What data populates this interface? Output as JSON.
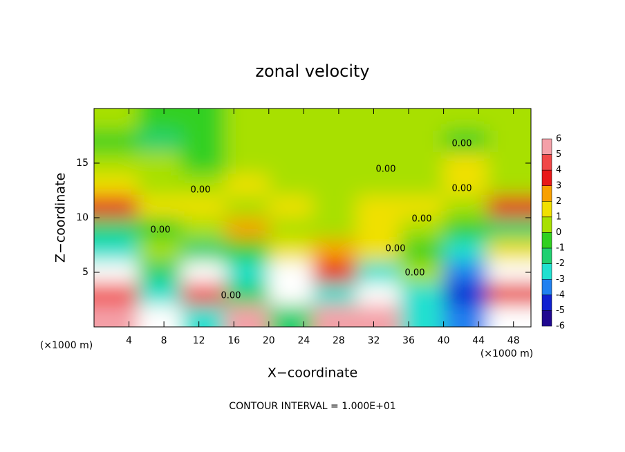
{
  "chart_data": {
    "type": "heatmap",
    "title": "zonal velocity",
    "x_label": "X−coordinate",
    "y_label": "Z−coordinate",
    "x_unit": "(×1000 m)",
    "y_unit": "(×1000 m)",
    "footnote": "CONTOUR INTERVAL = 1.000E+01",
    "contour_labels": [
      "0.00",
      "0.00",
      "0.00",
      "0.00",
      "0.00",
      "0.00",
      "0.00",
      "0.00",
      "0.00"
    ],
    "x": [
      2.5,
      7.5,
      12.5,
      17.5,
      22.5,
      27.5,
      32.5,
      37.5,
      42.5,
      47.5
    ],
    "z": [
      19,
      17,
      15,
      13,
      11,
      9,
      7,
      5,
      3,
      1
    ],
    "values": [
      [
        0,
        -1,
        -1,
        0,
        0,
        0,
        0,
        0,
        0,
        0
      ],
      [
        -1,
        -2,
        -1,
        0,
        0,
        0,
        0,
        0,
        -1,
        0
      ],
      [
        0,
        0,
        -1,
        0,
        0,
        0,
        0,
        0,
        1,
        0
      ],
      [
        1,
        0,
        0,
        1,
        0,
        0,
        0,
        0,
        1,
        0
      ],
      [
        3,
        1,
        1,
        0,
        1,
        0,
        1,
        1,
        0,
        3
      ],
      [
        -2,
        -1,
        0,
        2,
        0,
        0,
        1,
        0,
        -1,
        -2
      ],
      [
        -3,
        0,
        -2,
        -1,
        1,
        2,
        1,
        -1,
        -3,
        1
      ],
      [
        7,
        -2,
        7,
        -3,
        8,
        3,
        -3,
        0,
        -4,
        7
      ],
      [
        4,
        -3,
        4,
        -2,
        7,
        -3,
        8,
        -3,
        -5,
        3
      ],
      [
        5,
        7,
        -3,
        5,
        -2,
        6,
        6,
        -3,
        -4,
        7
      ]
    ],
    "xlim": [
      0,
      50
    ],
    "ylim": [
      0,
      20
    ],
    "xticks": [
      4,
      8,
      12,
      16,
      20,
      24,
      28,
      32,
      36,
      40,
      44,
      48
    ],
    "yticks": [
      5,
      10,
      15
    ],
    "levels": [
      6,
      5,
      4,
      3,
      2,
      1,
      0,
      -1,
      -2,
      -3,
      -4,
      -5,
      -6
    ],
    "colors": [
      "#f4a0a8",
      "#f04848",
      "#e81818",
      "#f8a000",
      "#f0e000",
      "#a8e000",
      "#30d020",
      "#20d070",
      "#20e0d0",
      "#2080f0",
      "#1020d0",
      "#200890"
    ],
    "over_color": "#ffffff"
  }
}
